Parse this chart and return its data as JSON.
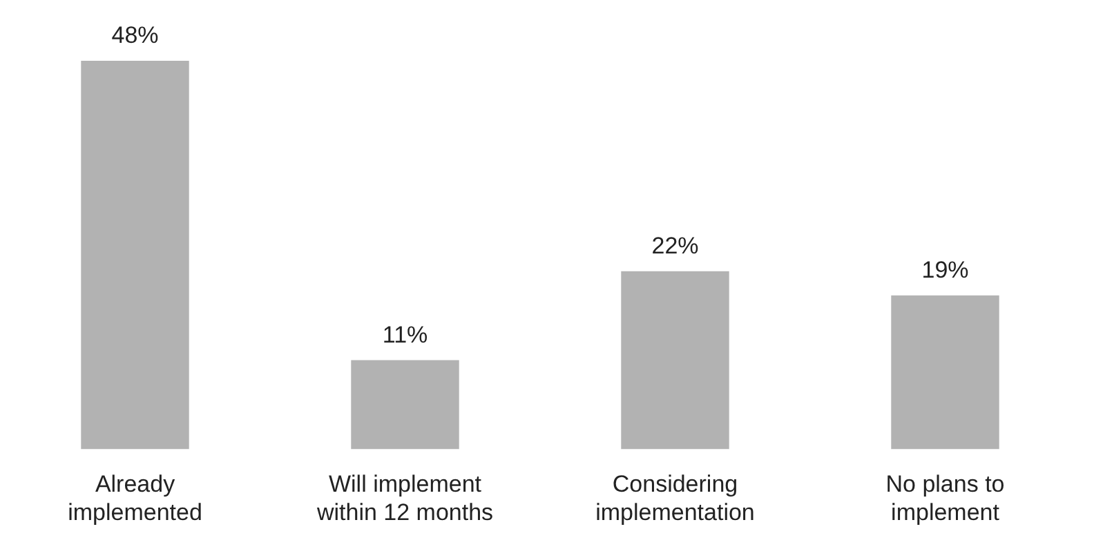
{
  "chart_data": {
    "type": "bar",
    "categories": [
      "Already implemented",
      "Will implement within 12 months",
      "Considering implementation",
      "No plans to implement"
    ],
    "values": [
      48,
      11,
      22,
      19
    ],
    "value_labels": [
      "48%",
      "11%",
      "22%",
      "19%"
    ],
    "color": "#b2b2b2",
    "grid": false,
    "legend": false
  }
}
